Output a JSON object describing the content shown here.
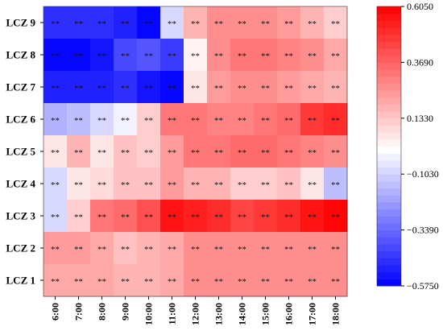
{
  "chart_data": {
    "type": "heatmap",
    "title": "",
    "xlabel": "",
    "ylabel": "",
    "x": [
      "6:00",
      "7:00",
      "8:00",
      "9:00",
      "10:00",
      "11:00",
      "12:00",
      "13:00",
      "14:00",
      "15:00",
      "16:00",
      "17:00",
      "18:00"
    ],
    "y": [
      "LCZ 9",
      "LCZ 8",
      "LCZ 7",
      "LCZ 6",
      "LCZ 5",
      "LCZ 4",
      "LCZ 3",
      "LCZ 2",
      "LCZ 1"
    ],
    "values": [
      [
        -0.48,
        -0.47,
        -0.48,
        -0.5,
        -0.56,
        -0.08,
        0.17,
        0.26,
        0.28,
        0.27,
        0.25,
        0.19,
        0.13
      ],
      [
        -0.57,
        -0.56,
        -0.52,
        -0.4,
        -0.38,
        -0.45,
        0.04,
        0.28,
        0.33,
        0.31,
        0.29,
        0.26,
        0.2
      ],
      [
        -0.5,
        -0.5,
        -0.49,
        -0.46,
        -0.54,
        -0.58,
        0.06,
        0.25,
        0.28,
        0.27,
        0.25,
        0.22,
        0.18
      ],
      [
        -0.18,
        -0.16,
        -0.08,
        -0.04,
        0.13,
        0.32,
        0.33,
        0.3,
        0.3,
        0.31,
        0.36,
        0.46,
        0.5
      ],
      [
        0.05,
        0.17,
        0.06,
        0.14,
        0.13,
        0.25,
        0.33,
        0.33,
        0.34,
        0.34,
        0.32,
        0.3,
        0.26
      ],
      [
        -0.1,
        0.05,
        0.1,
        0.16,
        0.16,
        0.24,
        0.17,
        0.17,
        0.12,
        0.11,
        0.14,
        0.05,
        -0.14
      ],
      [
        -0.1,
        0.13,
        0.32,
        0.35,
        0.41,
        0.56,
        0.52,
        0.49,
        0.44,
        0.46,
        0.5,
        0.55,
        0.6
      ],
      [
        0.24,
        0.23,
        0.2,
        0.15,
        0.17,
        0.2,
        0.27,
        0.27,
        0.27,
        0.27,
        0.27,
        0.27,
        0.27
      ],
      [
        0.2,
        0.2,
        0.2,
        0.19,
        0.18,
        0.2,
        0.26,
        0.26,
        0.26,
        0.26,
        0.26,
        0.26,
        0.26
      ]
    ],
    "annotation": "**",
    "colorbar": {
      "min": -0.575,
      "max": 0.605,
      "ticks": [
        "0.6050",
        "0.3690",
        "0.1330",
        "−0.1030",
        "−0.3390",
        "−0.5750"
      ],
      "tick_values": [
        0.605,
        0.369,
        0.133,
        -0.103,
        -0.339,
        -0.575
      ],
      "colors": [
        "#0000ff",
        "#ffffff",
        "#ff0000"
      ],
      "steps": 40
    }
  }
}
